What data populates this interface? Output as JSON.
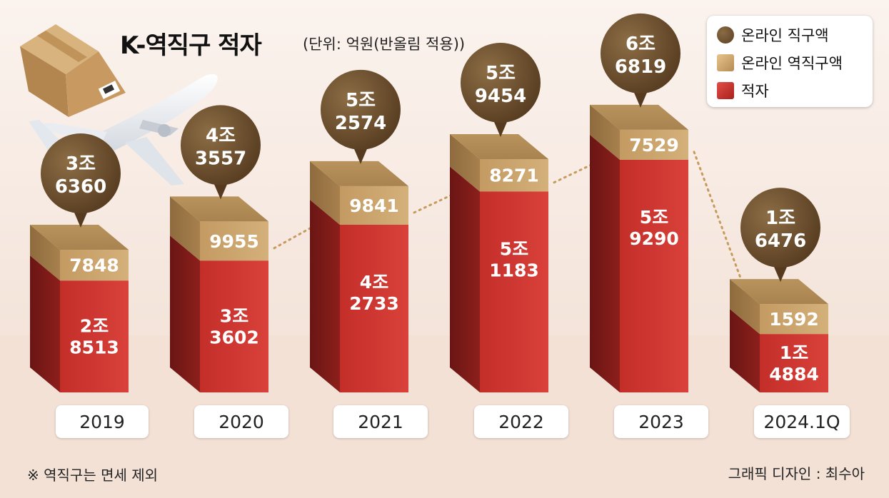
{
  "title": "K-역직구 적자",
  "unit": "(단위: 억원(반올림 적용))",
  "legend": [
    {
      "label": "온라인 직구액",
      "color": "#6b4e2e"
    },
    {
      "label": "온라인 역직구액",
      "color": "#c9a06a"
    },
    {
      "label": "적자",
      "color": "#c9312c"
    }
  ],
  "note": "※ 역직구는 면세 제외",
  "credit": "그래픽 디자인 : 최수아",
  "colors": {
    "direct": "#6b4e2e",
    "reverse": "#c9a06a",
    "deficit": "#c9312c"
  },
  "chart_data": {
    "type": "bar",
    "categories": [
      "2019",
      "2020",
      "2021",
      "2022",
      "2023",
      "2024.1Q"
    ],
    "series": [
      {
        "name": "온라인 직구액",
        "values": [
          36360,
          43557,
          52574,
          59454,
          66819,
          16476
        ],
        "labels": [
          [
            "3조",
            "6360"
          ],
          [
            "4조",
            "3557"
          ],
          [
            "5조",
            "2574"
          ],
          [
            "5조",
            "9454"
          ],
          [
            "6조",
            "6819"
          ],
          [
            "1조",
            "6476"
          ]
        ]
      },
      {
        "name": "온라인 역직구액",
        "values": [
          7848,
          9955,
          9841,
          8271,
          7529,
          1592
        ],
        "labels": [
          "7848",
          "9955",
          "9841",
          "8271",
          "7529",
          "1592"
        ]
      },
      {
        "name": "적자",
        "values": [
          28513,
          33602,
          42733,
          51183,
          59290,
          14884
        ],
        "labels": [
          [
            "2조",
            "8513"
          ],
          [
            "3조",
            "3602"
          ],
          [
            "4조",
            "2733"
          ],
          [
            "5조",
            "1183"
          ],
          [
            "5조",
            "9290"
          ],
          [
            "1조",
            "4884"
          ]
        ]
      }
    ]
  }
}
